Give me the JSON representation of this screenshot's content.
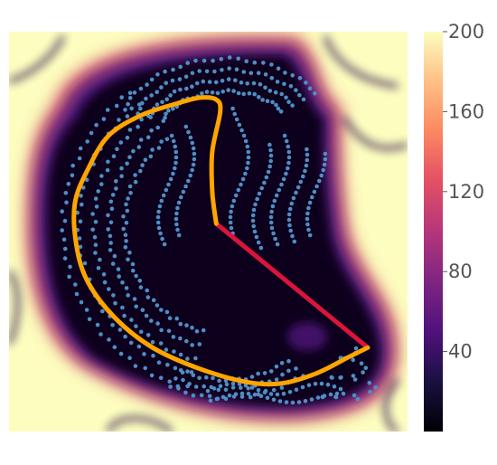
{
  "chart_data": {
    "type": "heatmap",
    "title": "",
    "xlabel": "",
    "ylabel": "",
    "colormap": "magma",
    "colorbar": {
      "range": [
        0,
        200
      ],
      "ticks": [
        40,
        80,
        120,
        160,
        200
      ],
      "tick_labels": [
        "40",
        "80",
        "120",
        "160",
        "200"
      ]
    },
    "grid": false,
    "legend": "none",
    "background_field": {
      "description": "potential field: low (dark) in the interior region, high (light) near the obstacle boundaries",
      "low_value": 0,
      "high_value": 200
    },
    "overlays": {
      "point_cloud_color": "#4f8ec4",
      "curved_path_color": "#ffa500",
      "straight_segment_color": "#dc143c",
      "straight_segment": {
        "start": [
          0.52,
          0.48
        ],
        "end": [
          0.9,
          0.79
        ]
      },
      "curved_path": [
        [
          0.52,
          0.48
        ],
        [
          0.51,
          0.4
        ],
        [
          0.51,
          0.3
        ],
        [
          0.53,
          0.2
        ],
        [
          0.52,
          0.17
        ],
        [
          0.48,
          0.165
        ],
        [
          0.42,
          0.18
        ],
        [
          0.33,
          0.21
        ],
        [
          0.25,
          0.26
        ],
        [
          0.2,
          0.34
        ],
        [
          0.165,
          0.43
        ],
        [
          0.17,
          0.54
        ],
        [
          0.2,
          0.63
        ],
        [
          0.27,
          0.72
        ],
        [
          0.36,
          0.79
        ],
        [
          0.47,
          0.84
        ],
        [
          0.59,
          0.875
        ],
        [
          0.68,
          0.88
        ],
        [
          0.77,
          0.855
        ],
        [
          0.85,
          0.815
        ],
        [
          0.9,
          0.79
        ]
      ]
    }
  }
}
